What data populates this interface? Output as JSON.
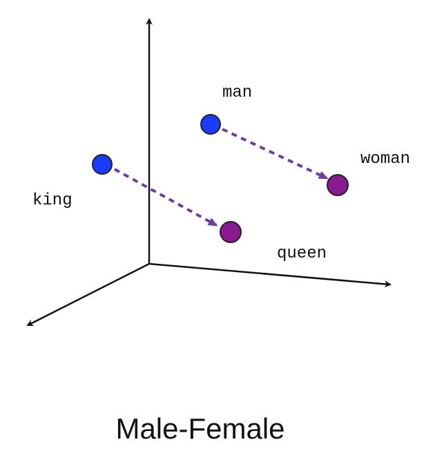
{
  "caption": "Male-Female",
  "words": {
    "man": "man",
    "woman": "woman",
    "king": "king",
    "queen": "queen"
  },
  "colors": {
    "male_point": "#1a3cff",
    "female_point": "#8a1a8f",
    "arrow": "#6b3fa0",
    "axis": "#111111",
    "point_outline": "#222222"
  }
}
